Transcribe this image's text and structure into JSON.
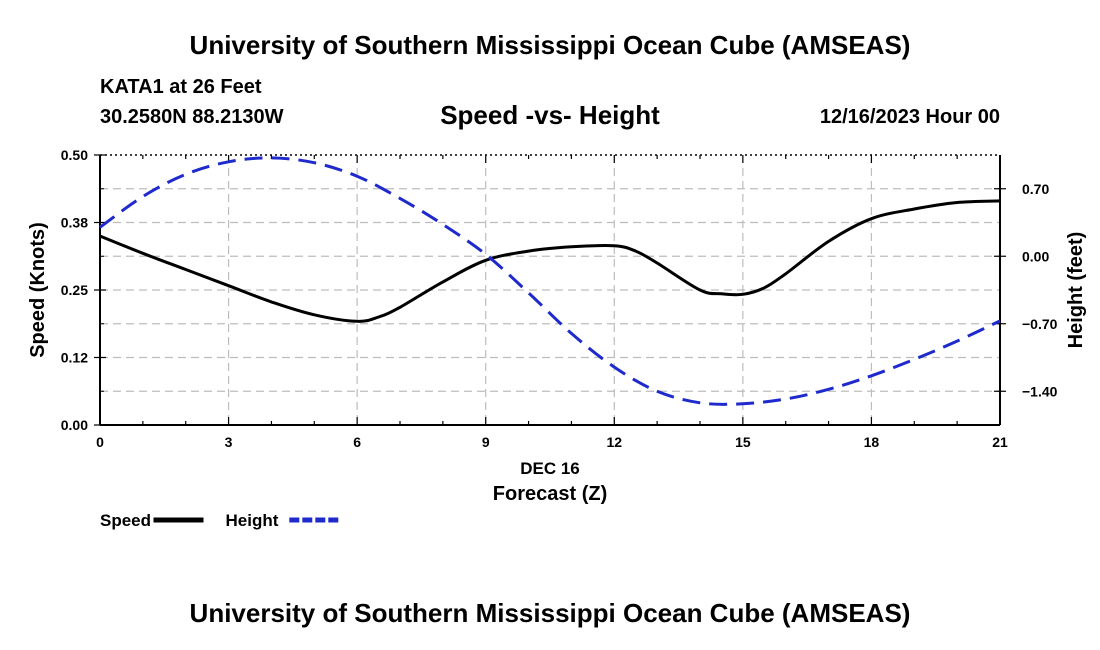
{
  "header": {
    "title": "University of Southern Mississippi Ocean Cube (AMSEAS)",
    "station": "KATA1 at 26 Feet",
    "coords": "30.2580N  88.2130W",
    "subtitle": "Speed -vs- Height",
    "datetime": "12/16/2023 Hour 00"
  },
  "footer": {
    "title": "University of Southern Mississippi Ocean Cube (AMSEAS)"
  },
  "chart_data": {
    "type": "line",
    "title": "Speed -vs- Height",
    "xlabel_date": "DEC 16",
    "xlabel": "Forecast (Z)",
    "ylabel_left": "Speed (Knots)",
    "ylabel_right": "Height (feet)",
    "xlim": [
      0,
      21
    ],
    "x_ticks": [
      0,
      3,
      6,
      9,
      12,
      15,
      18,
      21
    ],
    "y_left_lim": [
      0,
      0.5
    ],
    "y_left_ticks": [
      0,
      0.125,
      0.25,
      0.375,
      0.5
    ],
    "y_left_tick_labels": [
      "0.00",
      "0.12",
      "0.25",
      "0.38",
      "0.50"
    ],
    "y_right_lim": [
      -1.75,
      1.05
    ],
    "y_right_ticks": [
      -1.4,
      -0.7,
      0,
      0.7
    ],
    "y_right_tick_labels": [
      "−1.40",
      "−0.70",
      "0.00",
      "0.70"
    ],
    "grid": true,
    "series": [
      {
        "name": "Speed",
        "axis": "left",
        "color": "#000000",
        "style": "solid",
        "x": [
          0,
          1,
          2,
          3,
          4,
          5,
          6,
          6.5,
          7,
          8,
          9,
          10,
          11,
          12,
          12.5,
          13,
          14,
          14.5,
          15,
          15.5,
          16,
          17,
          18,
          19,
          20,
          21
        ],
        "y": [
          0.35,
          0.318,
          0.288,
          0.258,
          0.228,
          0.204,
          0.192,
          0.2,
          0.218,
          0.265,
          0.305,
          0.322,
          0.33,
          0.332,
          0.322,
          0.3,
          0.25,
          0.243,
          0.242,
          0.254,
          0.28,
          0.34,
          0.382,
          0.4,
          0.412,
          0.415
        ]
      },
      {
        "name": "Height",
        "axis": "right",
        "color": "#1f2acc",
        "style": "dashed",
        "x": [
          0,
          1,
          2,
          3,
          4,
          5,
          6,
          7,
          8,
          9,
          10,
          11,
          12,
          13,
          14,
          15,
          16,
          17,
          18,
          19,
          20,
          21
        ],
        "y": [
          0.3,
          0.62,
          0.85,
          0.98,
          1.02,
          0.97,
          0.83,
          0.6,
          0.33,
          0.02,
          -0.38,
          -0.8,
          -1.15,
          -1.4,
          -1.52,
          -1.53,
          -1.48,
          -1.38,
          -1.24,
          -1.07,
          -0.88,
          -0.67
        ]
      }
    ],
    "legend": [
      {
        "label": "Speed",
        "color": "#000000",
        "style": "solid"
      },
      {
        "label": "Height",
        "color": "#1f2acc",
        "style": "dashed"
      }
    ]
  }
}
